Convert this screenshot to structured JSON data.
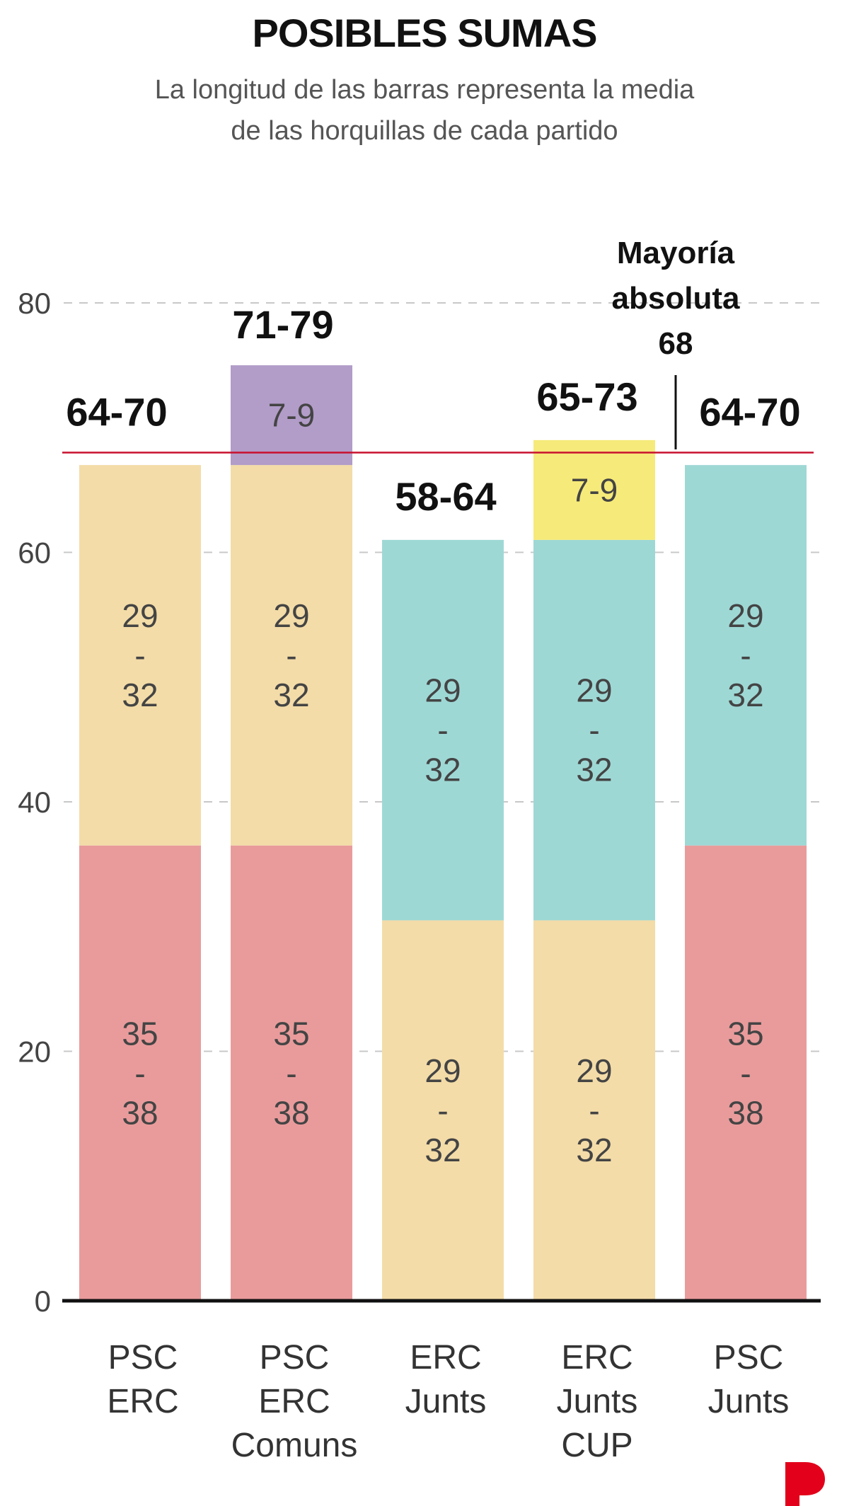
{
  "header": {
    "title": "POSIBLES SUMAS",
    "subtitle_line1": "La longitud de las barras representa la media",
    "subtitle_line2": "de las horquillas de cada partido"
  },
  "chart_data": {
    "type": "bar",
    "stacked": true,
    "ylim": [
      0,
      80
    ],
    "y_ticks": [
      0,
      20,
      40,
      60,
      80
    ],
    "grid": true,
    "majority": {
      "value": 68,
      "label_lines": [
        "Mayoría",
        "absoluta",
        "68"
      ]
    },
    "categories": [
      {
        "label_lines": [
          "PSC",
          "ERC"
        ],
        "total_label": "64-70",
        "segments": [
          {
            "value": 36.5,
            "label": "35 - 38",
            "label_lines": [
              "35",
              "-",
              "38"
            ],
            "color": "#e99b9b"
          },
          {
            "value": 30.5,
            "label": "29 - 32",
            "label_lines": [
              "29",
              "-",
              "32"
            ],
            "color": "#f3dca8"
          }
        ]
      },
      {
        "label_lines": [
          "PSC",
          "ERC",
          "Comuns"
        ],
        "total_label": "71-79",
        "segments": [
          {
            "value": 36.5,
            "label": "35 - 38",
            "label_lines": [
              "35",
              "-",
              "38"
            ],
            "color": "#e99b9b"
          },
          {
            "value": 30.5,
            "label": "29 - 32",
            "label_lines": [
              "29",
              "-",
              "32"
            ],
            "color": "#f3dca8"
          },
          {
            "value": 8,
            "label": "7-9",
            "label_lines": [
              "7-9"
            ],
            "color": "#b29cc8"
          }
        ]
      },
      {
        "label_lines": [
          "ERC",
          "Junts"
        ],
        "total_label": "58-64",
        "segments": [
          {
            "value": 30.5,
            "label": "29 - 32",
            "label_lines": [
              "29",
              "-",
              "32"
            ],
            "color": "#f3dca8"
          },
          {
            "value": 30.5,
            "label": "29 - 32",
            "label_lines": [
              "29",
              "-",
              "32"
            ],
            "color": "#9ed8d5"
          }
        ]
      },
      {
        "label_lines": [
          "ERC",
          "Junts",
          "CUP"
        ],
        "total_label": "65-73",
        "segments": [
          {
            "value": 30.5,
            "label": "29 - 32",
            "label_lines": [
              "29",
              "-",
              "32"
            ],
            "color": "#f3dca8"
          },
          {
            "value": 30.5,
            "label": "29 - 32",
            "label_lines": [
              "29",
              "-",
              "32"
            ],
            "color": "#9ed8d5"
          },
          {
            "value": 8,
            "label": "7-9",
            "label_lines": [
              "7-9"
            ],
            "color": "#f6ea7a"
          }
        ]
      },
      {
        "label_lines": [
          "PSC",
          "Junts"
        ],
        "total_label": "64-70",
        "segments": [
          {
            "value": 36.5,
            "label": "35 - 38",
            "label_lines": [
              "35",
              "-",
              "38"
            ],
            "color": "#e99b9b"
          },
          {
            "value": 30.5,
            "label": "29 - 32",
            "label_lines": [
              "29",
              "-",
              "32"
            ],
            "color": "#9ed8d5"
          }
        ]
      }
    ]
  },
  "colors": {
    "majority_line": "#c8102e",
    "grid": "#c8c8c8",
    "axis": "#111111",
    "logo": "#e2001a"
  },
  "logo": {
    "icon": "p-logo-icon"
  }
}
